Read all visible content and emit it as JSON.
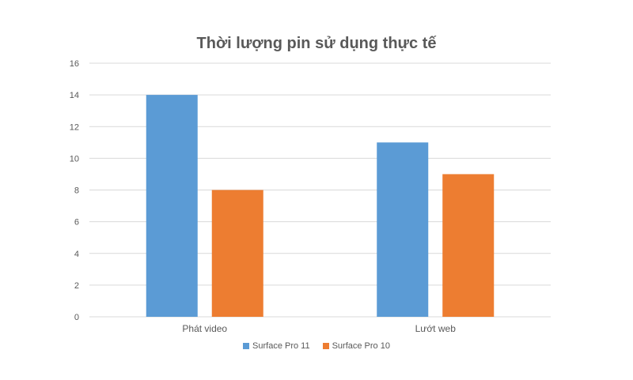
{
  "chart_data": {
    "type": "bar",
    "title": "Thời lượng pin sử dụng thực tế",
    "categories": [
      "Phát video",
      "Lướt web"
    ],
    "series": [
      {
        "name": "Surface Pro 11",
        "values": [
          14,
          11
        ],
        "color": "#5B9BD5"
      },
      {
        "name": "Surface Pro 10",
        "values": [
          8,
          9
        ],
        "color": "#ED7D31"
      }
    ],
    "xlabel": "",
    "ylabel": "",
    "ylim": [
      0,
      16
    ],
    "yticks": [
      0,
      2,
      4,
      6,
      8,
      10,
      12,
      14,
      16
    ],
    "grid": true,
    "legend_position": "bottom"
  }
}
